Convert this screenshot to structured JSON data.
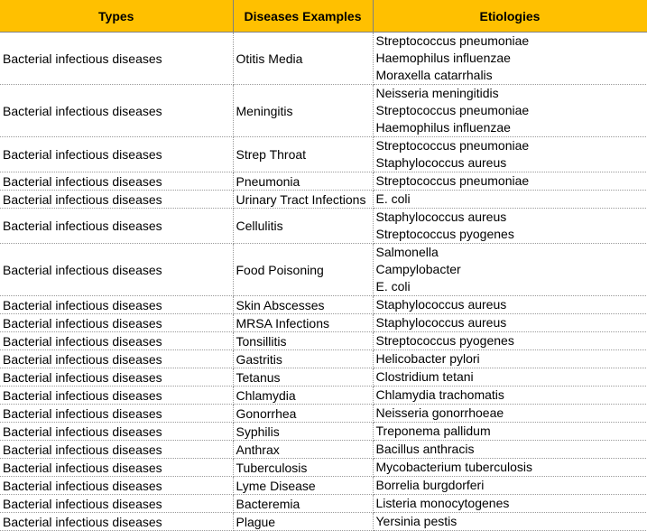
{
  "header": {
    "background": "#FFC000",
    "columns": [
      "Types",
      "Diseases Examples",
      "Etiologies"
    ]
  },
  "rows": [
    {
      "type": "Bacterial infectious diseases",
      "disease": "Otitis Media",
      "etiologies": [
        "Streptococcus pneumoniae",
        "Haemophilus influenzae",
        "Moraxella catarrhalis"
      ]
    },
    {
      "type": "Bacterial infectious diseases",
      "disease": "Meningitis",
      "etiologies": [
        "Neisseria meningitidis",
        "Streptococcus pneumoniae",
        "Haemophilus influenzae"
      ]
    },
    {
      "type": "Bacterial infectious diseases",
      "disease": "Strep Throat",
      "etiologies": [
        "Streptococcus pneumoniae",
        "Staphylococcus aureus"
      ]
    },
    {
      "type": "Bacterial infectious diseases",
      "disease": "Pneumonia",
      "etiologies": [
        "Streptococcus pneumoniae"
      ]
    },
    {
      "type": "Bacterial infectious diseases",
      "disease": "Urinary Tract Infections",
      "etiologies": [
        "E. coli"
      ]
    },
    {
      "type": "Bacterial infectious diseases",
      "disease": "Cellulitis",
      "etiologies": [
        "Staphylococcus aureus",
        "Streptococcus pyogenes"
      ]
    },
    {
      "type": "Bacterial infectious diseases",
      "disease": "Food Poisoning",
      "etiologies": [
        "Salmonella",
        "Campylobacter",
        "E. coli"
      ]
    },
    {
      "type": "Bacterial infectious diseases",
      "disease": "Skin Abscesses",
      "etiologies": [
        "Staphylococcus aureus"
      ]
    },
    {
      "type": "Bacterial infectious diseases",
      "disease": "MRSA Infections",
      "etiologies": [
        "Staphylococcus aureus"
      ]
    },
    {
      "type": "Bacterial infectious diseases",
      "disease": "Tonsillitis",
      "etiologies": [
        "Streptococcus pyogenes"
      ]
    },
    {
      "type": "Bacterial infectious diseases",
      "disease": "Gastritis",
      "etiologies": [
        "Helicobacter pylori"
      ]
    },
    {
      "type": "Bacterial infectious diseases",
      "disease": "Tetanus",
      "etiologies": [
        "Clostridium tetani"
      ]
    },
    {
      "type": "Bacterial infectious diseases",
      "disease": "Chlamydia",
      "etiologies": [
        "Chlamydia trachomatis"
      ]
    },
    {
      "type": "Bacterial infectious diseases",
      "disease": "Gonorrhea",
      "etiologies": [
        "Neisseria gonorrhoeae"
      ]
    },
    {
      "type": "Bacterial infectious diseases",
      "disease": "Syphilis",
      "etiologies": [
        "Treponema pallidum"
      ]
    },
    {
      "type": "Bacterial infectious diseases",
      "disease": "Anthrax",
      "etiologies": [
        "Bacillus anthracis"
      ]
    },
    {
      "type": "Bacterial infectious diseases",
      "disease": "Tuberculosis",
      "etiologies": [
        "Mycobacterium tuberculosis"
      ]
    },
    {
      "type": "Bacterial infectious diseases",
      "disease": "Lyme Disease",
      "etiologies": [
        "Borrelia burgdorferi"
      ]
    },
    {
      "type": "Bacterial infectious diseases",
      "disease": "Bacteremia",
      "etiologies": [
        "Listeria monocytogenes"
      ]
    },
    {
      "type": "Bacterial infectious diseases",
      "disease": "Plague",
      "etiologies": [
        "Yersinia pestis"
      ]
    }
  ]
}
